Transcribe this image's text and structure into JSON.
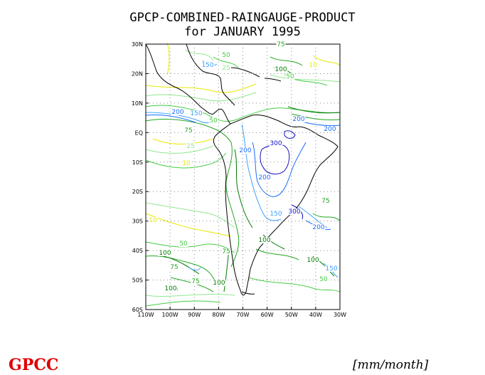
{
  "title_line1": "GPCP-COMBINED-RAINGAUGE-PRODUCT",
  "title_line2": "for JANUARY 1995",
  "lat_ticks": [
    "30N",
    "20N",
    "10N",
    "EQ",
    "10S",
    "20S",
    "30S",
    "40S",
    "50S",
    "60S"
  ],
  "lon_ticks": [
    "110W",
    "100W",
    "90W",
    "80W",
    "70W",
    "60W",
    "50W",
    "40W",
    "30W"
  ],
  "contour_labels": [
    {
      "text": "10",
      "level": 10
    },
    {
      "text": "25",
      "level": 25
    },
    {
      "text": "50",
      "level": 50
    },
    {
      "text": "75",
      "level": 75
    },
    {
      "text": "100",
      "level": 100
    },
    {
      "text": "150",
      "level": 150
    },
    {
      "text": "200",
      "level": 200
    },
    {
      "text": "300",
      "level": 300
    }
  ],
  "colors": {
    "c10": "#e8e800",
    "c25": "#90e890",
    "c50": "#44cc44",
    "c75": "#22a622",
    "c100": "#007a00",
    "c150": "#3aa0ff",
    "c200": "#1a6cff",
    "c300": "#1010c0",
    "coast": "#000000",
    "grid": "#888888",
    "logo": "#e00000"
  },
  "logo": "GPCC",
  "units": "[mm/month]"
}
